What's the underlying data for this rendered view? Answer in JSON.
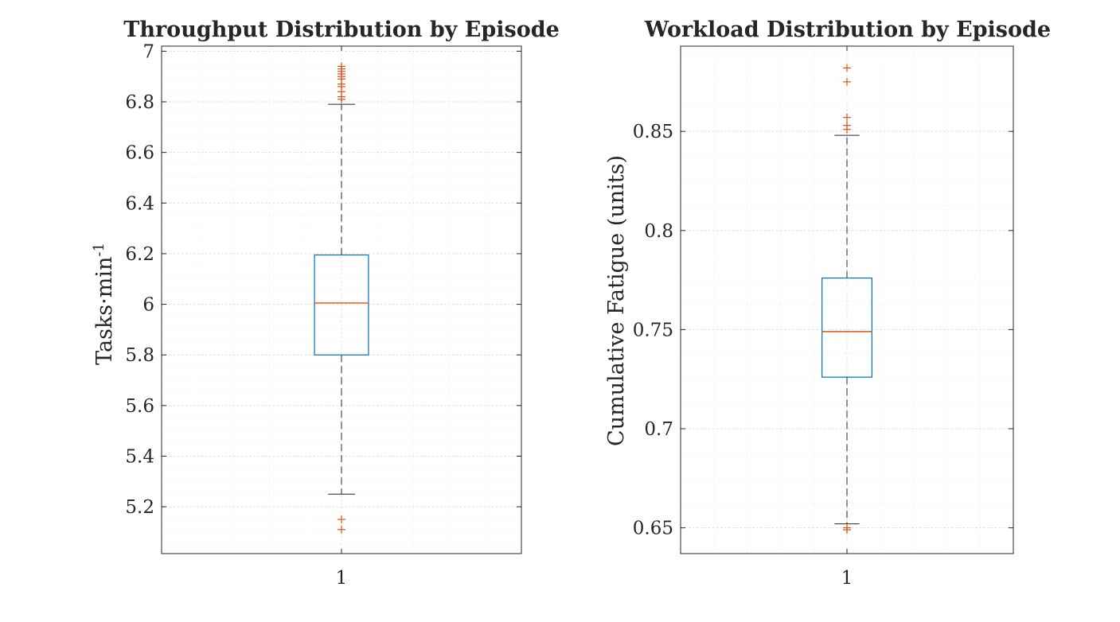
{
  "chart_data": [
    {
      "type": "box",
      "title": "Throughput Distribution by Episode",
      "ylabel": "Tasks·min",
      "ylabel_superscript": "-1",
      "xlabel": "",
      "categories": [
        "1"
      ],
      "ylim": [
        5.015,
        7.02
      ],
      "yticks": [
        5.2,
        5.4,
        5.6,
        5.8,
        6,
        6.2,
        6.4,
        6.6,
        6.8,
        7
      ],
      "ytick_labels": [
        "5.2",
        "5.4",
        "5.6",
        "5.8",
        "6",
        "6.2",
        "6.4",
        "6.6",
        "6.8",
        "7"
      ],
      "box": {
        "q1": 5.8,
        "median": 6.005,
        "q3": 6.195,
        "whisker_low": 5.25,
        "whisker_high": 6.79
      },
      "outliers": [
        6.81,
        6.82,
        6.84,
        6.86,
        6.87,
        6.89,
        6.9,
        6.91,
        6.92,
        6.93,
        6.94,
        5.11,
        5.15
      ],
      "grid": true,
      "colors": {
        "box": "#0072BD",
        "median": "#D95319",
        "outlier": "#D95319",
        "axis": "#262626"
      }
    },
    {
      "type": "box",
      "title": "Workload Distribution by Episode",
      "ylabel": "Cumulative Fatigue (units)",
      "xlabel": "",
      "categories": [
        "1"
      ],
      "ylim": [
        0.637,
        0.893
      ],
      "yticks": [
        0.65,
        0.7,
        0.75,
        0.8,
        0.85
      ],
      "ytick_labels": [
        "0.65",
        "0.7",
        "0.75",
        "0.8",
        "0.85"
      ],
      "box": {
        "q1": 0.726,
        "median": 0.749,
        "q3": 0.776,
        "whisker_low": 0.652,
        "whisker_high": 0.848
      },
      "outliers": [
        0.649,
        0.65,
        0.851,
        0.853,
        0.857,
        0.875,
        0.882
      ],
      "grid": true,
      "colors": {
        "box": "#0072BD",
        "median": "#D95319",
        "outlier": "#D95319",
        "axis": "#262626"
      }
    }
  ]
}
